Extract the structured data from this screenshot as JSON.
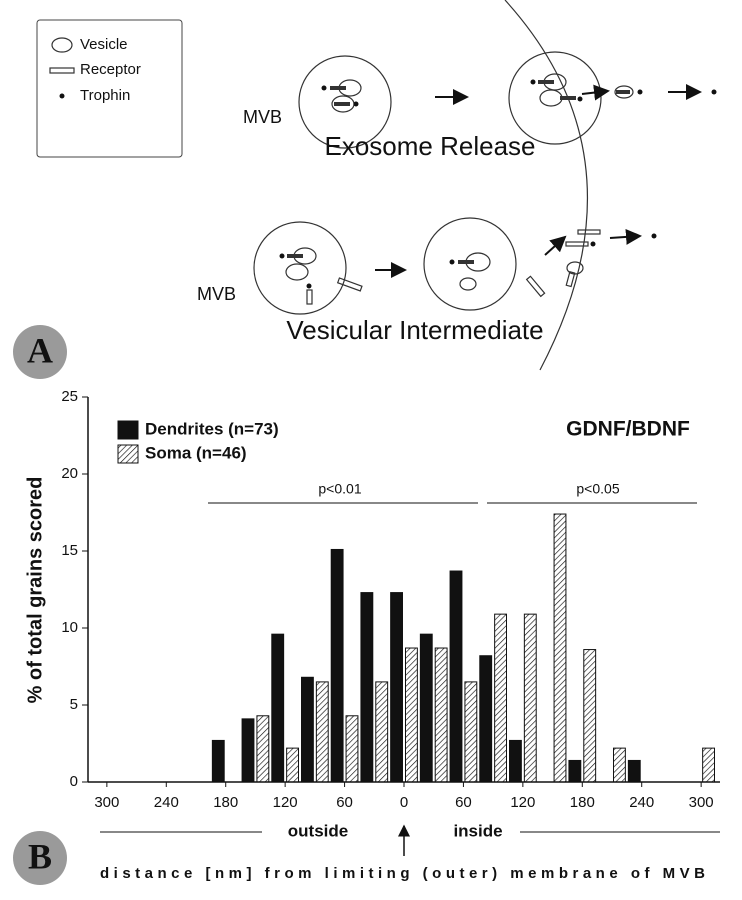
{
  "diagram": {
    "legend": [
      "Vesicle",
      "Receptor",
      "Trophin"
    ],
    "mvb_label_top": "MVB",
    "mvb_label_bottom": "MVB",
    "title_top": "Exosome Release",
    "title_bottom": "Vesicular Intermediate",
    "panel_a": "A",
    "panel_b": "B"
  },
  "chart_data": {
    "type": "histogram",
    "ylabel": "% of total grains scored",
    "xlabel": "distance [nm] from limiting (outer) membrane of MVB",
    "annotation": "GDNF/BDNF",
    "side_labels": [
      "outside",
      "inside"
    ],
    "significance": [
      "p<0.01",
      "p<0.05"
    ],
    "bins": [
      -315,
      -285,
      -255,
      -225,
      -195,
      -165,
      -135,
      -105,
      -75,
      -45,
      -15,
      15,
      45,
      75,
      105,
      135,
      165,
      195,
      225,
      255,
      285,
      315
    ],
    "series": [
      {
        "name": "Dendrites (n=73)",
        "color": "#111111",
        "hatch": false,
        "values": [
          0,
          0,
          0,
          0,
          2.7,
          4.1,
          9.6,
          6.8,
          15.1,
          12.3,
          12.3,
          9.6,
          13.7,
          8.2,
          2.7,
          0,
          1.4,
          0,
          1.4,
          0,
          0
        ]
      },
      {
        "name": "Soma (n=46)",
        "color": "#111111",
        "hatch": true,
        "values": [
          0,
          0,
          0,
          0,
          0,
          4.3,
          2.2,
          6.5,
          4.3,
          6.5,
          8.7,
          8.7,
          6.5,
          10.9,
          10.9,
          17.4,
          8.6,
          2.2,
          0,
          0,
          2.2
        ]
      }
    ],
    "xlim": [
      -315,
      315
    ],
    "xticks": [
      {
        "value": -300,
        "label": "300"
      },
      {
        "value": -240,
        "label": "240"
      },
      {
        "value": -180,
        "label": "180"
      },
      {
        "value": -120,
        "label": "120"
      },
      {
        "value": -60,
        "label": "60"
      },
      0,
      60,
      120,
      180,
      240,
      300
    ],
    "ylim": [
      0,
      25
    ],
    "yticks": [
      0,
      5,
      10,
      15,
      20,
      25
    ],
    "legend": "upper left"
  }
}
